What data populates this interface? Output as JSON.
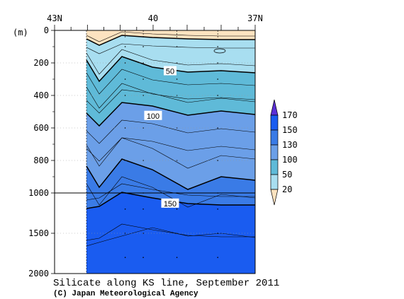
{
  "chart_data": {
    "type": "section",
    "title": "Silicate along KS line, September 2011",
    "credit": "(C) Japan Meteorological Agency",
    "y_unit_label": "(m)",
    "x_ticks": [
      {
        "label": "43N",
        "lat": 43
      },
      {
        "label": "40",
        "lat": 40
      },
      {
        "label": "37N",
        "lat": 37
      }
    ],
    "y_ticks_upper": [
      0,
      200,
      400,
      600,
      800,
      1000
    ],
    "y_ticks_lower": [
      1500,
      2000
    ],
    "x_range": [
      43,
      37
    ],
    "y_range": [
      0,
      2000
    ],
    "legend": {
      "labels": [
        "170",
        "150",
        "130",
        "100",
        "50",
        "20"
      ],
      "bins": [
        {
          "lower": 150,
          "upper": 170,
          "color": "#1a5cf0"
        },
        {
          "lower": 130,
          "upper": 150,
          "color": "#3a7be6"
        },
        {
          "lower": 100,
          "upper": 130,
          "color": "#6b9fe8"
        },
        {
          "lower": 50,
          "upper": 100,
          "color": "#5fbad8"
        },
        {
          "lower": 20,
          "upper": 50,
          "color": "#a8def0"
        }
      ],
      "above_color": "#5a2fd6",
      "below_color": "#fde3c0"
    },
    "contour_labels": [
      {
        "text": "50",
        "lat": 39.5,
        "depth": 250
      },
      {
        "text": "100",
        "lat": 40.0,
        "depth": 525
      },
      {
        "text": "150",
        "lat": 39.5,
        "depth": 1130
      }
    ],
    "stations_lat": [
      40.85,
      40.3,
      39.3,
      38.1
    ],
    "colors": {
      "band_lt20": "#fde3c0",
      "band_20_50": "#a8def0",
      "band_50_100": "#5fbad8",
      "band_100_130": "#6b9fe8",
      "band_130_150": "#3a7be6",
      "band_150_170": "#1a5cf0"
    }
  }
}
